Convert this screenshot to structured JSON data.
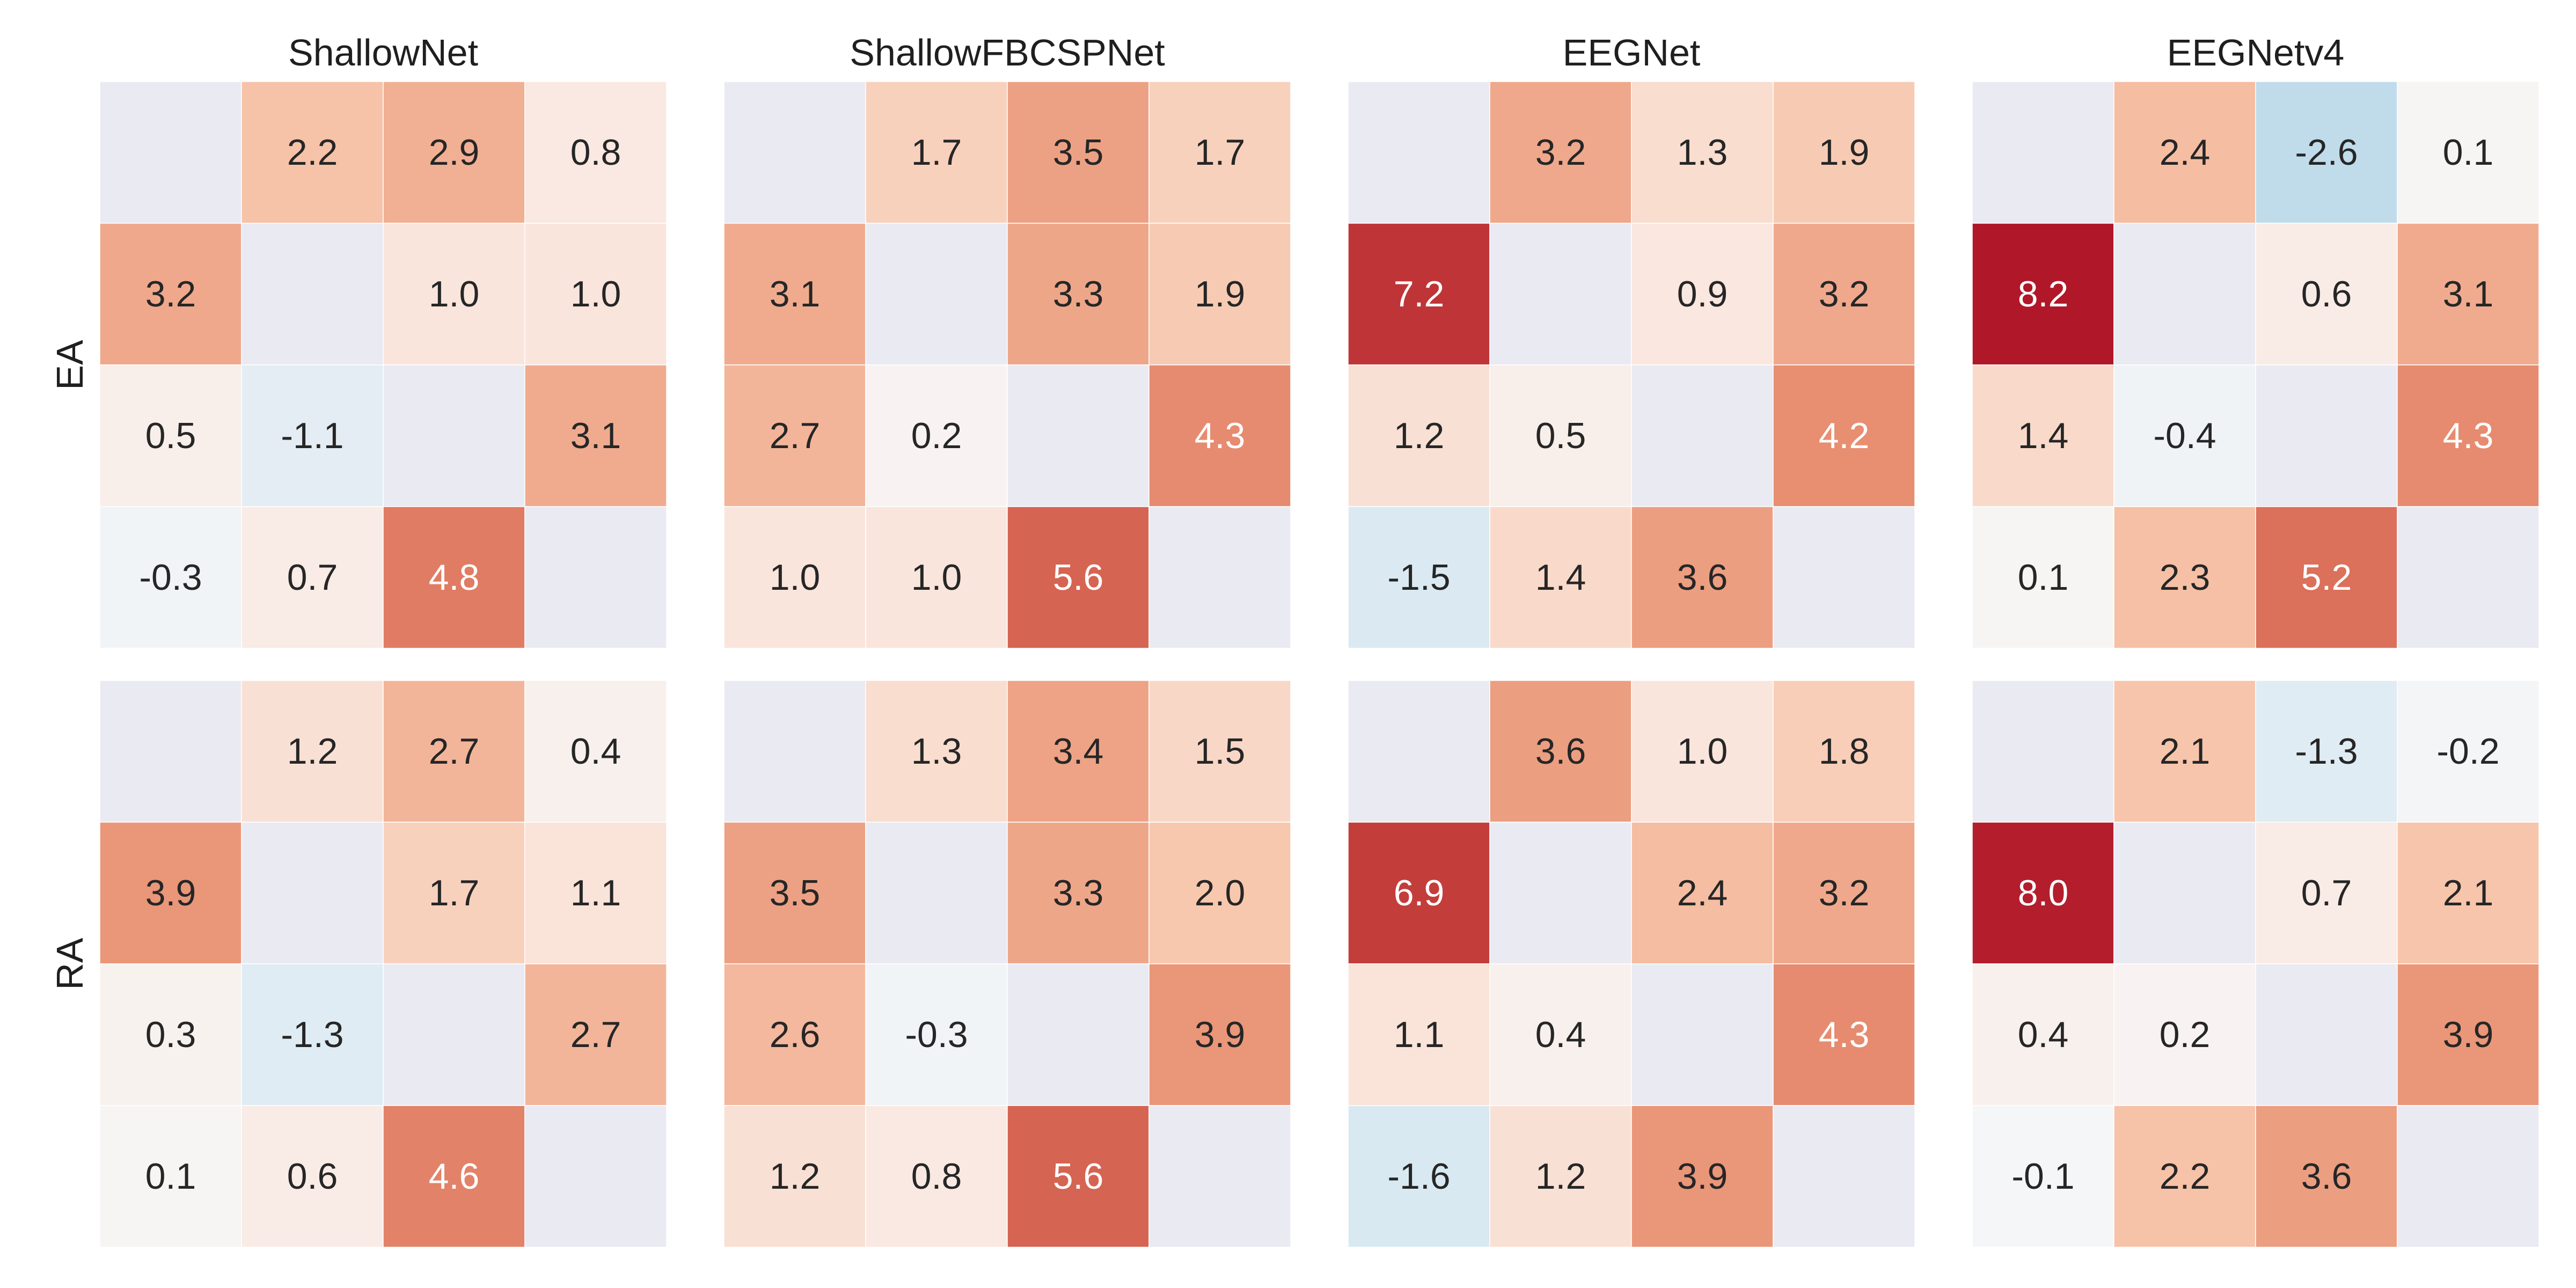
{
  "chart_data": {
    "type": "heatmap",
    "panel_titles": [
      "ShallowNet",
      "ShallowFBCSPNet",
      "EEGNet",
      "EEGNetv4"
    ],
    "row_labels": [
      "EA",
      "RA"
    ],
    "colormap": "diverging RdBu_r (negative = blue, positive = red)",
    "value_range": [
      -8.2,
      8.2
    ],
    "diagonal": "empty",
    "missing_color": "#eaeaf2",
    "grid": false,
    "colorbar": false,
    "panels": [
      {
        "row": "EA",
        "title": "ShallowNet",
        "matrix": [
          [
            null,
            2.2,
            2.9,
            0.8
          ],
          [
            3.2,
            null,
            1.0,
            1.0
          ],
          [
            0.5,
            -1.1,
            null,
            3.1
          ],
          [
            -0.3,
            0.7,
            4.8,
            null
          ]
        ]
      },
      {
        "row": "EA",
        "title": "ShallowFBCSPNet",
        "matrix": [
          [
            null,
            1.7,
            3.5,
            1.7
          ],
          [
            3.1,
            null,
            3.3,
            1.9
          ],
          [
            2.7,
            0.2,
            null,
            4.3
          ],
          [
            1.0,
            1.0,
            5.6,
            null
          ]
        ]
      },
      {
        "row": "EA",
        "title": "EEGNet",
        "matrix": [
          [
            null,
            3.2,
            1.3,
            1.9
          ],
          [
            7.2,
            null,
            0.9,
            3.2
          ],
          [
            1.2,
            0.5,
            null,
            4.2
          ],
          [
            -1.5,
            1.4,
            3.6,
            null
          ]
        ]
      },
      {
        "row": "EA",
        "title": "EEGNetv4",
        "matrix": [
          [
            null,
            2.4,
            -2.6,
            0.1
          ],
          [
            8.2,
            null,
            0.6,
            3.1
          ],
          [
            1.4,
            -0.4,
            null,
            4.3
          ],
          [
            0.1,
            2.3,
            5.2,
            null
          ]
        ]
      },
      {
        "row": "RA",
        "title": "ShallowNet",
        "matrix": [
          [
            null,
            1.2,
            2.7,
            0.4
          ],
          [
            3.9,
            null,
            1.7,
            1.1
          ],
          [
            0.3,
            -1.3,
            null,
            2.7
          ],
          [
            0.1,
            0.6,
            4.6,
            null
          ]
        ]
      },
      {
        "row": "RA",
        "title": "ShallowFBCSPNet",
        "matrix": [
          [
            null,
            1.3,
            3.4,
            1.5
          ],
          [
            3.5,
            null,
            3.3,
            2.0
          ],
          [
            2.6,
            -0.3,
            null,
            3.9
          ],
          [
            1.2,
            0.8,
            5.6,
            null
          ]
        ]
      },
      {
        "row": "RA",
        "title": "EEGNet",
        "matrix": [
          [
            null,
            3.6,
            1.0,
            1.8
          ],
          [
            6.9,
            null,
            2.4,
            3.2
          ],
          [
            1.1,
            0.4,
            null,
            4.3
          ],
          [
            -1.6,
            1.2,
            3.9,
            null
          ]
        ]
      },
      {
        "row": "RA",
        "title": "EEGNetv4",
        "matrix": [
          [
            null,
            2.1,
            -1.3,
            -0.2
          ],
          [
            8.0,
            null,
            0.7,
            2.1
          ],
          [
            0.4,
            0.2,
            null,
            3.9
          ],
          [
            -0.1,
            2.2,
            3.6,
            null
          ]
        ]
      }
    ]
  }
}
